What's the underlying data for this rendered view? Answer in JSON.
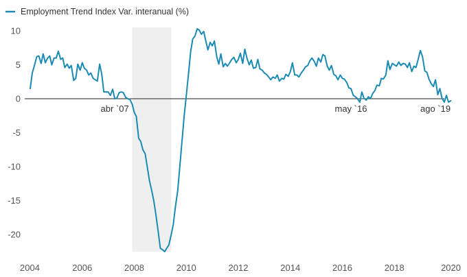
{
  "chart_data": {
    "type": "line",
    "title": "",
    "xlabel": "",
    "ylabel": "",
    "xlim": [
      2004,
      2020
    ],
    "ylim": [
      -22.5,
      10.5
    ],
    "x_ticks": [
      2004,
      2006,
      2008,
      2010,
      2012,
      2014,
      2016,
      2018,
      2020
    ],
    "x_tick_labels": [
      "2004",
      "2006",
      "2008",
      "2010",
      "2012",
      "2014",
      "2016",
      "2018",
      "2020"
    ],
    "y_ticks": [
      10,
      5,
      0,
      -5,
      -10,
      -15,
      -20
    ],
    "y_tick_labels": [
      "10",
      "5",
      "0",
      "-5",
      "-10",
      "-15",
      "-20"
    ],
    "grid": false,
    "legend": {
      "position": "top-left",
      "entries": [
        "Employment Trend Index Var. interanual (%)"
      ]
    },
    "shaded_regions": [
      {
        "x_start": 2007.92,
        "x_end": 2009.42,
        "color": "#efefef"
      }
    ],
    "annotations": [
      {
        "text": "abr `07",
        "x": 2007.25,
        "y": 0
      },
      {
        "text": "may `16",
        "x": 2016.33,
        "y": 0
      },
      {
        "text": "ago `19",
        "x": 2019.58,
        "y": 0
      }
    ],
    "series": [
      {
        "name": "Employment Trend Index Var. interanual (%)",
        "color": "#1a8ab3",
        "points": [
          [
            2004.0,
            1.5
          ],
          [
            2004.08,
            3.8
          ],
          [
            2004.17,
            5.0
          ],
          [
            2004.25,
            6.2
          ],
          [
            2004.33,
            6.3
          ],
          [
            2004.42,
            5.2
          ],
          [
            2004.5,
            6.6
          ],
          [
            2004.58,
            5.3
          ],
          [
            2004.67,
            6.0
          ],
          [
            2004.75,
            6.3
          ],
          [
            2004.83,
            5.0
          ],
          [
            2004.92,
            6.0
          ],
          [
            2005.0,
            6.0
          ],
          [
            2005.08,
            7.0
          ],
          [
            2005.17,
            5.8
          ],
          [
            2005.25,
            6.0
          ],
          [
            2005.33,
            4.6
          ],
          [
            2005.42,
            5.1
          ],
          [
            2005.5,
            4.5
          ],
          [
            2005.58,
            4.9
          ],
          [
            2005.67,
            2.7
          ],
          [
            2005.75,
            3.0
          ],
          [
            2005.83,
            5.1
          ],
          [
            2005.92,
            4.2
          ],
          [
            2006.0,
            5.3
          ],
          [
            2006.08,
            4.5
          ],
          [
            2006.17,
            4.2
          ],
          [
            2006.25,
            3.5
          ],
          [
            2006.33,
            3.8
          ],
          [
            2006.42,
            3.0
          ],
          [
            2006.5,
            2.8
          ],
          [
            2006.58,
            2.6
          ],
          [
            2006.67,
            5.1
          ],
          [
            2006.75,
            3.6
          ],
          [
            2006.83,
            1.0
          ],
          [
            2006.92,
            1.0
          ],
          [
            2007.0,
            1.0
          ],
          [
            2007.08,
            0.5
          ],
          [
            2007.17,
            1.4
          ],
          [
            2007.25,
            0.0
          ],
          [
            2007.33,
            0.1
          ],
          [
            2007.42,
            0.9
          ],
          [
            2007.5,
            1.0
          ],
          [
            2007.58,
            0.9
          ],
          [
            2007.67,
            0.2
          ],
          [
            2007.75,
            0.0
          ],
          [
            2007.83,
            -0.1
          ],
          [
            2007.92,
            -0.8
          ],
          [
            2008.0,
            -2.0
          ],
          [
            2008.08,
            -2.6
          ],
          [
            2008.17,
            -5.8
          ],
          [
            2008.25,
            -6.3
          ],
          [
            2008.33,
            -7.5
          ],
          [
            2008.42,
            -8.1
          ],
          [
            2008.5,
            -10.0
          ],
          [
            2008.58,
            -12.0
          ],
          [
            2008.67,
            -13.5
          ],
          [
            2008.75,
            -15.0
          ],
          [
            2008.83,
            -17.0
          ],
          [
            2008.92,
            -19.5
          ],
          [
            2009.0,
            -22.0
          ],
          [
            2009.08,
            -22.2
          ],
          [
            2009.17,
            -22.5
          ],
          [
            2009.25,
            -22.0
          ],
          [
            2009.33,
            -21.5
          ],
          [
            2009.42,
            -20.0
          ],
          [
            2009.5,
            -18.5
          ],
          [
            2009.58,
            -16.0
          ],
          [
            2009.67,
            -13.5
          ],
          [
            2009.75,
            -10.0
          ],
          [
            2009.83,
            -6.5
          ],
          [
            2009.92,
            -2.5
          ],
          [
            2010.0,
            0.5
          ],
          [
            2010.08,
            3.5
          ],
          [
            2010.17,
            7.0
          ],
          [
            2010.25,
            8.8
          ],
          [
            2010.33,
            9.2
          ],
          [
            2010.42,
            10.3
          ],
          [
            2010.5,
            10.1
          ],
          [
            2010.58,
            9.5
          ],
          [
            2010.67,
            9.9
          ],
          [
            2010.75,
            8.5
          ],
          [
            2010.83,
            7.2
          ],
          [
            2010.92,
            8.3
          ],
          [
            2011.0,
            7.8
          ],
          [
            2011.08,
            8.5
          ],
          [
            2011.17,
            6.2
          ],
          [
            2011.25,
            5.1
          ],
          [
            2011.33,
            6.6
          ],
          [
            2011.42,
            4.7
          ],
          [
            2011.5,
            5.2
          ],
          [
            2011.58,
            4.8
          ],
          [
            2011.67,
            5.3
          ],
          [
            2011.75,
            5.8
          ],
          [
            2011.83,
            6.1
          ],
          [
            2011.92,
            5.3
          ],
          [
            2012.0,
            5.8
          ],
          [
            2012.08,
            6.7
          ],
          [
            2012.17,
            5.2
          ],
          [
            2012.25,
            7.3
          ],
          [
            2012.33,
            6.0
          ],
          [
            2012.42,
            5.0
          ],
          [
            2012.5,
            5.7
          ],
          [
            2012.58,
            4.5
          ],
          [
            2012.67,
            4.6
          ],
          [
            2012.75,
            5.8
          ],
          [
            2012.83,
            4.4
          ],
          [
            2012.92,
            4.2
          ],
          [
            2013.0,
            3.8
          ],
          [
            2013.08,
            3.6
          ],
          [
            2013.17,
            3.2
          ],
          [
            2013.25,
            2.8
          ],
          [
            2013.33,
            3.2
          ],
          [
            2013.42,
            3.0
          ],
          [
            2013.5,
            3.5
          ],
          [
            2013.58,
            2.6
          ],
          [
            2013.67,
            3.0
          ],
          [
            2013.75,
            2.9
          ],
          [
            2013.83,
            3.6
          ],
          [
            2013.92,
            3.3
          ],
          [
            2014.0,
            4.0
          ],
          [
            2014.08,
            5.3
          ],
          [
            2014.17,
            3.5
          ],
          [
            2014.25,
            3.5
          ],
          [
            2014.33,
            3.2
          ],
          [
            2014.42,
            3.8
          ],
          [
            2014.5,
            4.2
          ],
          [
            2014.58,
            4.7
          ],
          [
            2014.67,
            4.9
          ],
          [
            2014.75,
            5.6
          ],
          [
            2014.83,
            6.0
          ],
          [
            2014.92,
            5.5
          ],
          [
            2015.0,
            4.8
          ],
          [
            2015.08,
            6.0
          ],
          [
            2015.17,
            5.4
          ],
          [
            2015.25,
            6.5
          ],
          [
            2015.33,
            6.3
          ],
          [
            2015.42,
            4.8
          ],
          [
            2015.5,
            4.2
          ],
          [
            2015.58,
            4.9
          ],
          [
            2015.67,
            3.6
          ],
          [
            2015.75,
            3.4
          ],
          [
            2015.83,
            2.8
          ],
          [
            2015.92,
            3.5
          ],
          [
            2016.0,
            3.0
          ],
          [
            2016.08,
            2.9
          ],
          [
            2016.17,
            2.4
          ],
          [
            2016.25,
            1.6
          ],
          [
            2016.33,
            1.5
          ],
          [
            2016.42,
            0.5
          ],
          [
            2016.5,
            0.3
          ],
          [
            2016.58,
            0.0
          ],
          [
            2016.67,
            -0.5
          ],
          [
            2016.75,
            1.0
          ],
          [
            2016.83,
            0.1
          ],
          [
            2016.92,
            -0.2
          ],
          [
            2017.0,
            0.3
          ],
          [
            2017.08,
            0.0
          ],
          [
            2017.17,
            0.8
          ],
          [
            2017.25,
            1.2
          ],
          [
            2017.33,
            2.0
          ],
          [
            2017.42,
            1.9
          ],
          [
            2017.5,
            3.0
          ],
          [
            2017.58,
            2.9
          ],
          [
            2017.67,
            3.5
          ],
          [
            2017.75,
            5.6
          ],
          [
            2017.83,
            4.3
          ],
          [
            2017.92,
            5.2
          ],
          [
            2018.0,
            5.0
          ],
          [
            2018.08,
            4.8
          ],
          [
            2018.17,
            5.4
          ],
          [
            2018.25,
            4.9
          ],
          [
            2018.33,
            5.2
          ],
          [
            2018.42,
            5.1
          ],
          [
            2018.5,
            4.6
          ],
          [
            2018.58,
            5.3
          ],
          [
            2018.67,
            4.0
          ],
          [
            2018.75,
            4.8
          ],
          [
            2018.83,
            4.6
          ],
          [
            2018.92,
            5.9
          ],
          [
            2019.0,
            7.1
          ],
          [
            2019.08,
            6.2
          ],
          [
            2019.17,
            4.1
          ],
          [
            2019.25,
            3.9
          ],
          [
            2019.33,
            2.9
          ],
          [
            2019.42,
            2.2
          ],
          [
            2019.5,
            1.8
          ],
          [
            2019.58,
            2.8
          ],
          [
            2019.67,
            0.6
          ],
          [
            2019.75,
            1.5
          ],
          [
            2019.83,
            0.1
          ],
          [
            2019.92,
            -0.5
          ],
          [
            2020.0,
            0.5
          ],
          [
            2020.08,
            -0.5
          ],
          [
            2020.17,
            -0.3
          ]
        ]
      }
    ]
  }
}
